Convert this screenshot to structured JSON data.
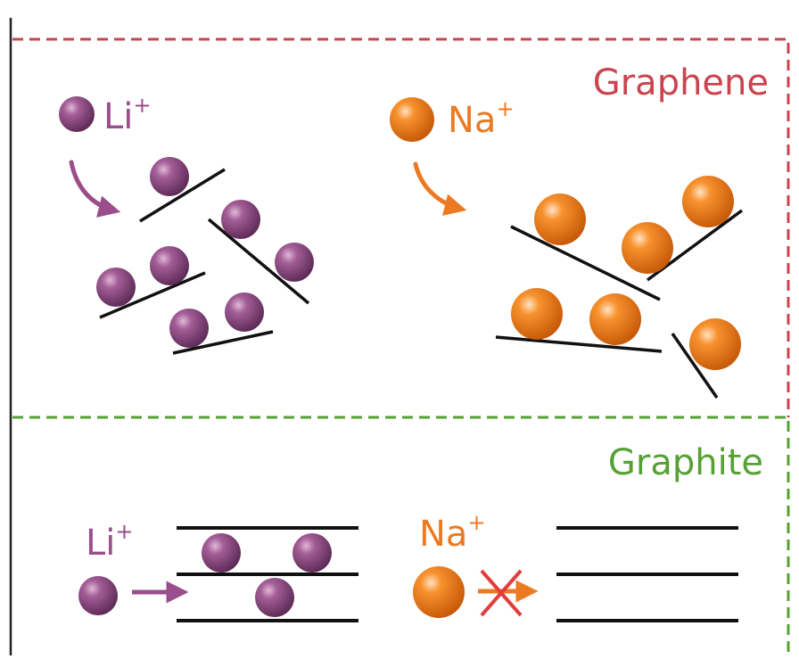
{
  "panels": {
    "graphene": {
      "title": "Graphene",
      "color": "#c9444f"
    },
    "graphite": {
      "title": "Graphite",
      "color": "#56a134"
    }
  },
  "ions": {
    "li": {
      "symbol": "Li",
      "charge": "+",
      "color": "#8e4a82",
      "label_color": "#9a4e8c"
    },
    "na": {
      "symbol": "Na",
      "charge": "+",
      "color": "#ee7a16",
      "label_color": "#ec7a22"
    }
  },
  "colors": {
    "layer_line": "#111111",
    "blocked_cross": "#e23d3d",
    "frame_line": "#222222"
  },
  "icons": {
    "arrow_li": "curved-arrow",
    "arrow_na": "curved-arrow",
    "blocked": "cross-mark"
  }
}
